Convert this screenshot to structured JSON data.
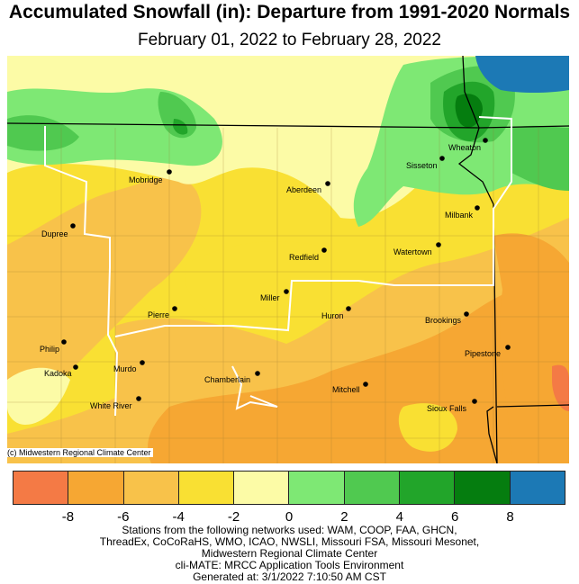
{
  "title": "Accumulated Snowfall (in): Departure from 1991-2020 Normals",
  "subtitle": "February 01, 2022 to February 28, 2022",
  "copyright": "(c) Midwestern Regional Climate Center",
  "stations": [
    "Mobridge",
    "Aberdeen",
    "Sisseton",
    "Wheaton",
    "Dupree",
    "Milbank",
    "Redfield",
    "Watertown",
    "Miller",
    "Pierre",
    "Huron",
    "Brookings",
    "Philip",
    "Kadoka",
    "Murdo",
    "Pipestone",
    "Chamberlain",
    "Mitchell",
    "White River",
    "Sioux Falls"
  ],
  "legend": {
    "colors": [
      "#f47a45",
      "#f6a733",
      "#f8c24a",
      "#f9e033",
      "#fcfba6",
      "#7ee874",
      "#50c950",
      "#22a52a",
      "#057d0f",
      "#1c79b5"
    ],
    "ticks": [
      "-8",
      "-6",
      "-4",
      "-2",
      "0",
      "2",
      "4",
      "6",
      "8"
    ]
  },
  "footer": {
    "line1": "Stations from the following networks used: WAM, COOP, FAA, GHCN,",
    "line2": "ThreadEx, CoCoRaHS, WMO, ICAO, NWSLI, Missouri FSA, Missouri Mesonet,",
    "line3": "Midwestern Regional Climate Center",
    "line4": "cli-MATE: MRCC Application Tools Environment",
    "line5": "Generated at: 3/1/2022 7:10:50 AM CST"
  }
}
